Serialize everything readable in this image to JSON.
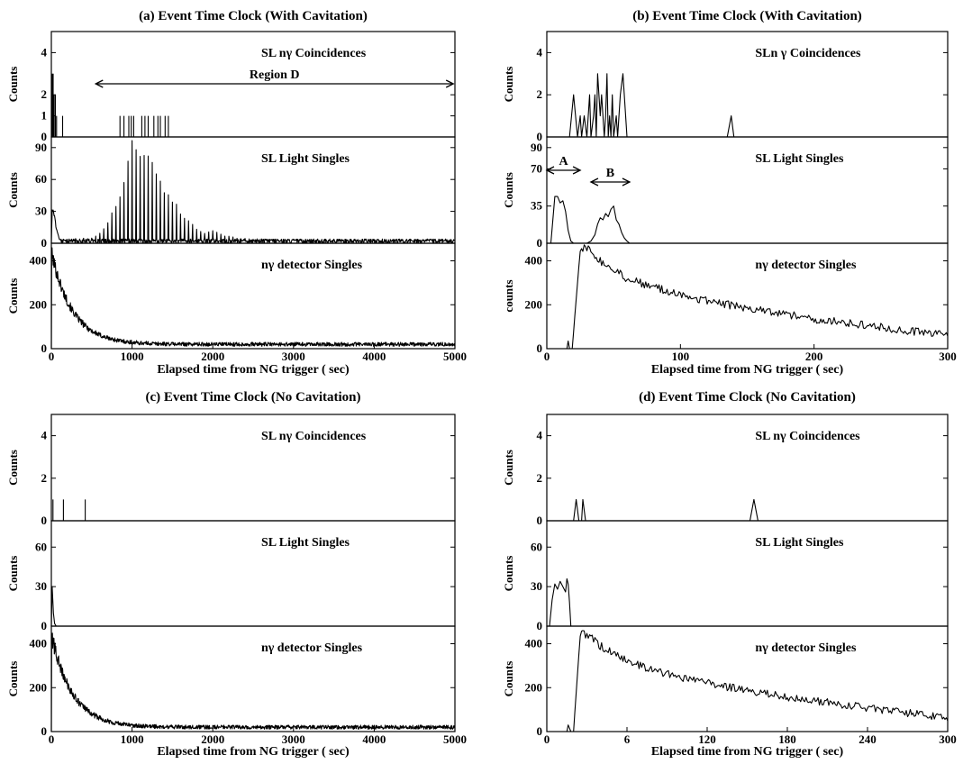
{
  "chart_data": [
    {
      "id": "a",
      "type": "line",
      "title": "(a) Event Time Clock (With Cavitation)",
      "xlabel": "Elapsed time from NG trigger (  sec)",
      "xlim": [
        0,
        5000
      ],
      "xticks": [
        "0",
        "1000",
        "2000",
        "3000",
        "4000",
        "5000"
      ],
      "grid": false,
      "panels": [
        {
          "name": "SL  nγ Coincidences",
          "ylabel": "Counts",
          "ylim": [
            0,
            5
          ],
          "yticks": [
            "0",
            "1",
            "2",
            "4"
          ],
          "style": "bars",
          "points": [
            [
              10,
              3
            ],
            [
              22,
              3
            ],
            [
              35,
              2
            ],
            [
              50,
              2
            ],
            [
              65,
              1
            ],
            [
              140,
              1
            ],
            [
              850,
              1
            ],
            [
              900,
              1
            ],
            [
              960,
              1
            ],
            [
              990,
              1
            ],
            [
              1020,
              1
            ],
            [
              1120,
              1
            ],
            [
              1160,
              1
            ],
            [
              1200,
              1
            ],
            [
              1270,
              1
            ],
            [
              1320,
              1
            ],
            [
              1350,
              1
            ],
            [
              1410,
              1
            ],
            [
              1450,
              1
            ]
          ],
          "annotations": [
            {
              "text": "Region  D",
              "x_from": 550,
              "x_to": 4980
            }
          ]
        },
        {
          "name": "SL Light Singles",
          "ylabel": "Counts",
          "ylim": [
            0,
            100
          ],
          "yticks": [
            "0",
            "30",
            "60",
            "90"
          ],
          "style": "spikes",
          "spike_spacing": 50,
          "noise_level": 2,
          "points": [
            [
              0,
              0
            ],
            [
              10,
              35
            ],
            [
              25,
              33
            ],
            [
              40,
              28
            ],
            [
              60,
              15
            ],
            [
              100,
              4
            ],
            [
              500,
              5
            ],
            [
              600,
              10
            ],
            [
              700,
              20
            ],
            [
              800,
              40
            ],
            [
              900,
              60
            ],
            [
              1000,
              98
            ],
            [
              1050,
              96
            ],
            [
              1100,
              93
            ],
            [
              1150,
              92
            ],
            [
              1200,
              84
            ],
            [
              1300,
              70
            ],
            [
              1400,
              55
            ],
            [
              1500,
              42
            ],
            [
              1600,
              32
            ],
            [
              1700,
              22
            ],
            [
              1800,
              15
            ],
            [
              1900,
              10
            ],
            [
              2000,
              13
            ],
            [
              2100,
              9
            ],
            [
              2300,
              5
            ],
            [
              2600,
              4
            ],
            [
              3000,
              4
            ],
            [
              4000,
              4
            ],
            [
              5000,
              4
            ]
          ]
        },
        {
          "name": "nγ detector Singles",
          "ylabel": "Counts",
          "ylim": [
            0,
            480
          ],
          "yticks": [
            "0",
            "200",
            "400"
          ],
          "style": "decay",
          "peak": 440,
          "decay_tau": 260,
          "baseline": 20,
          "noise": 9
        }
      ]
    },
    {
      "id": "b",
      "type": "line",
      "title": "(b) Event Time Clock (With Cavitation)",
      "xlabel": "Elapsed time from NG trigger (  sec)",
      "xlim": [
        0,
        300
      ],
      "xticks": [
        "0",
        "100",
        "200",
        "300"
      ],
      "grid": false,
      "panels": [
        {
          "name": "SLn  γ Coincidences",
          "ylabel": "Counts",
          "ylim": [
            0,
            5
          ],
          "yticks": [
            "0",
            "2",
            "4"
          ],
          "style": "line",
          "points": [
            [
              0,
              0
            ],
            [
              17,
              0
            ],
            [
              20,
              2
            ],
            [
              23,
              0
            ],
            [
              25,
              1
            ],
            [
              26,
              0
            ],
            [
              28,
              1
            ],
            [
              30,
              0
            ],
            [
              32,
              2
            ],
            [
              33,
              0
            ],
            [
              35,
              1
            ],
            [
              36,
              2
            ],
            [
              37,
              0
            ],
            [
              38,
              3
            ],
            [
              40,
              1
            ],
            [
              41,
              2
            ],
            [
              42,
              1
            ],
            [
              43,
              0
            ],
            [
              44,
              1
            ],
            [
              45,
              3
            ],
            [
              46,
              0
            ],
            [
              47,
              1
            ],
            [
              48,
              0
            ],
            [
              49,
              2
            ],
            [
              50,
              0
            ],
            [
              52,
              1
            ],
            [
              53,
              0
            ],
            [
              55,
              2
            ],
            [
              57,
              3
            ],
            [
              60,
              0
            ],
            [
              135,
              0
            ],
            [
              138,
              1
            ],
            [
              140,
              0
            ],
            [
              300,
              0
            ]
          ]
        },
        {
          "name": "SL Light Singles",
          "ylabel": "Counts",
          "ylim": [
            0,
            100
          ],
          "yticks": [
            "0",
            "35",
            "70",
            "90"
          ],
          "style": "line",
          "points": [
            [
              0,
              0
            ],
            [
              3,
              0
            ],
            [
              6,
              44
            ],
            [
              8,
              44
            ],
            [
              10,
              38
            ],
            [
              12,
              40
            ],
            [
              14,
              30
            ],
            [
              16,
              12
            ],
            [
              18,
              2
            ],
            [
              20,
              0
            ],
            [
              30,
              0
            ],
            [
              33,
              2
            ],
            [
              36,
              8
            ],
            [
              38,
              18
            ],
            [
              40,
              24
            ],
            [
              42,
              22
            ],
            [
              44,
              28
            ],
            [
              46,
              25
            ],
            [
              48,
              32
            ],
            [
              50,
              35
            ],
            [
              52,
              22
            ],
            [
              54,
              18
            ],
            [
              56,
              10
            ],
            [
              58,
              5
            ],
            [
              60,
              2
            ],
            [
              62,
              0
            ],
            [
              300,
              0
            ]
          ],
          "annotations": [
            {
              "text": "A",
              "x_from": 0,
              "x_to": 25
            },
            {
              "text": "B",
              "x_from": 33,
              "x_to": 62
            }
          ]
        },
        {
          "name": "nγ detector Singles",
          "ylabel": "counts",
          "ylim": [
            0,
            480
          ],
          "yticks": [
            "0",
            "200",
            "400"
          ],
          "style": "rise-decay",
          "points": [
            [
              0,
              0
            ],
            [
              15,
              0
            ],
            [
              16,
              35
            ],
            [
              17,
              0
            ],
            [
              19,
              0
            ],
            [
              25,
              450
            ],
            [
              30,
              460
            ],
            [
              40,
              400
            ],
            [
              60,
              320
            ],
            [
              80,
              280
            ],
            [
              100,
              245
            ],
            [
              130,
              205
            ],
            [
              160,
              175
            ],
            [
              200,
              135
            ],
            [
              240,
              105
            ],
            [
              270,
              82
            ],
            [
              300,
              60
            ]
          ],
          "noise": 18
        }
      ]
    },
    {
      "id": "c",
      "type": "line",
      "title": "(c) Event Time Clock (No Cavitation)",
      "xlabel": "Elapsed time from NG trigger (  sec)",
      "xlim": [
        0,
        5000
      ],
      "xticks": [
        "0",
        "1000",
        "2000",
        "3000",
        "4000",
        "5000"
      ],
      "grid": false,
      "panels": [
        {
          "name": "SL  nγ Coincidences",
          "ylabel": "Counts",
          "ylim": [
            0,
            5
          ],
          "yticks": [
            "0",
            "2",
            "4"
          ],
          "style": "bars",
          "points": [
            [
              20,
              1
            ],
            [
              150,
              1
            ],
            [
              420,
              1
            ]
          ]
        },
        {
          "name": "SL Light Singles",
          "ylabel": "Counts",
          "ylim": [
            0,
            80
          ],
          "yticks": [
            "0",
            "30",
            "60"
          ],
          "style": "line",
          "points": [
            [
              0,
              0
            ],
            [
              10,
              30
            ],
            [
              18,
              20
            ],
            [
              26,
              10
            ],
            [
              40,
              2
            ],
            [
              60,
              0
            ],
            [
              5000,
              0
            ]
          ]
        },
        {
          "name": "nγ detector Singles",
          "ylabel": "Counts",
          "ylim": [
            0,
            480
          ],
          "yticks": [
            "0",
            "200",
            "400"
          ],
          "style": "decay",
          "peak": 440,
          "decay_tau": 260,
          "baseline": 20,
          "noise": 9
        }
      ]
    },
    {
      "id": "d",
      "type": "line",
      "title": "(d) Event Time Clock (No Cavitation)",
      "xlabel": "Elapsed time from NG trigger (  sec)",
      "xlim": [
        0,
        300
      ],
      "xticks": [
        "0",
        "6",
        "120",
        "180",
        "240",
        "300"
      ],
      "grid": false,
      "panels": [
        {
          "name": "SL  nγ Coincidences",
          "ylabel": "Counts",
          "ylim": [
            0,
            5
          ],
          "yticks": [
            "0",
            "2",
            "4"
          ],
          "style": "line",
          "points": [
            [
              0,
              0
            ],
            [
              20,
              0
            ],
            [
              22,
              1
            ],
            [
              24,
              0
            ],
            [
              26,
              0
            ],
            [
              27,
              1
            ],
            [
              29,
              0
            ],
            [
              152,
              0
            ],
            [
              155,
              1
            ],
            [
              158,
              0
            ],
            [
              300,
              0
            ]
          ]
        },
        {
          "name": "SL Light Singles",
          "ylabel": "Counts",
          "ylim": [
            0,
            80
          ],
          "yticks": [
            "0",
            "30",
            "60"
          ],
          "style": "line",
          "points": [
            [
              0,
              0
            ],
            [
              2,
              0
            ],
            [
              4,
              20
            ],
            [
              6,
              32
            ],
            [
              8,
              28
            ],
            [
              10,
              34
            ],
            [
              12,
              30
            ],
            [
              14,
              26
            ],
            [
              15,
              36
            ],
            [
              16,
              32
            ],
            [
              17,
              18
            ],
            [
              18,
              0
            ],
            [
              300,
              0
            ]
          ]
        },
        {
          "name": "nγ detector Singles",
          "ylabel": "Counts",
          "ylim": [
            0,
            480
          ],
          "yticks": [
            "0",
            "200",
            "400"
          ],
          "style": "rise-decay",
          "points": [
            [
              0,
              0
            ],
            [
              15,
              0
            ],
            [
              16,
              30
            ],
            [
              18,
              0
            ],
            [
              20,
              0
            ],
            [
              25,
              440
            ],
            [
              30,
              445
            ],
            [
              40,
              390
            ],
            [
              60,
              320
            ],
            [
              80,
              280
            ],
            [
              100,
              245
            ],
            [
              130,
              210
            ],
            [
              160,
              175
            ],
            [
              200,
              140
            ],
            [
              240,
              108
            ],
            [
              270,
              85
            ],
            [
              300,
              62
            ]
          ],
          "noise": 18
        }
      ]
    }
  ]
}
